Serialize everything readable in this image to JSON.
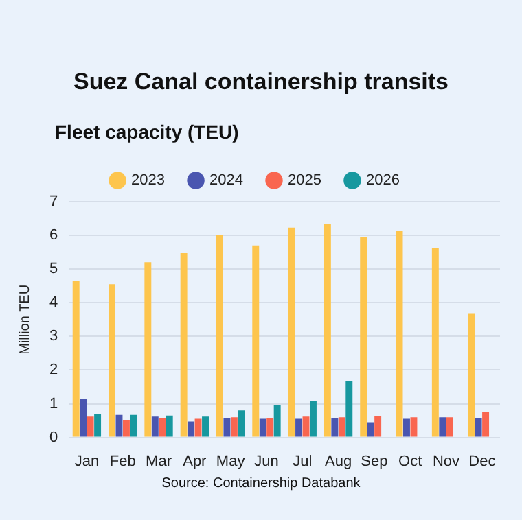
{
  "chart_data": {
    "type": "bar",
    "title": "Suez Canal containership transits",
    "subtitle": "Fleet capacity (TEU)",
    "ylabel": "Million TEU",
    "categories": [
      "Jan",
      "Feb",
      "Mar",
      "Apr",
      "May",
      "Jun",
      "Jul",
      "Aug",
      "Sep",
      "Oct",
      "Nov",
      "Dec"
    ],
    "series": [
      {
        "name": "2023",
        "color": "#fdc54d",
        "values": [
          4.65,
          4.55,
          5.2,
          5.47,
          6.0,
          5.7,
          6.23,
          6.35,
          5.96,
          6.13,
          5.62,
          3.69
        ]
      },
      {
        "name": "2024",
        "color": "#4a56b0",
        "values": [
          1.15,
          0.67,
          0.62,
          0.47,
          0.56,
          0.55,
          0.55,
          0.56,
          0.45,
          0.55,
          0.6,
          0.56
        ]
      },
      {
        "name": "2025",
        "color": "#f96650",
        "values": [
          0.62,
          0.52,
          0.58,
          0.55,
          0.6,
          0.58,
          0.62,
          0.6,
          0.63,
          0.6,
          0.6,
          0.75
        ]
      },
      {
        "name": "2026",
        "color": "#17989f",
        "values": [
          0.7,
          0.67,
          0.65,
          0.62,
          0.8,
          0.96,
          1.09,
          1.67,
          null,
          null,
          null,
          null
        ]
      }
    ],
    "ylim": [
      0,
      7
    ],
    "yticks": [
      0,
      1,
      2,
      3,
      4,
      5,
      6,
      7
    ],
    "grid": "y",
    "legend": "top",
    "annotations": [
      "Source: Containership Databank"
    ]
  }
}
